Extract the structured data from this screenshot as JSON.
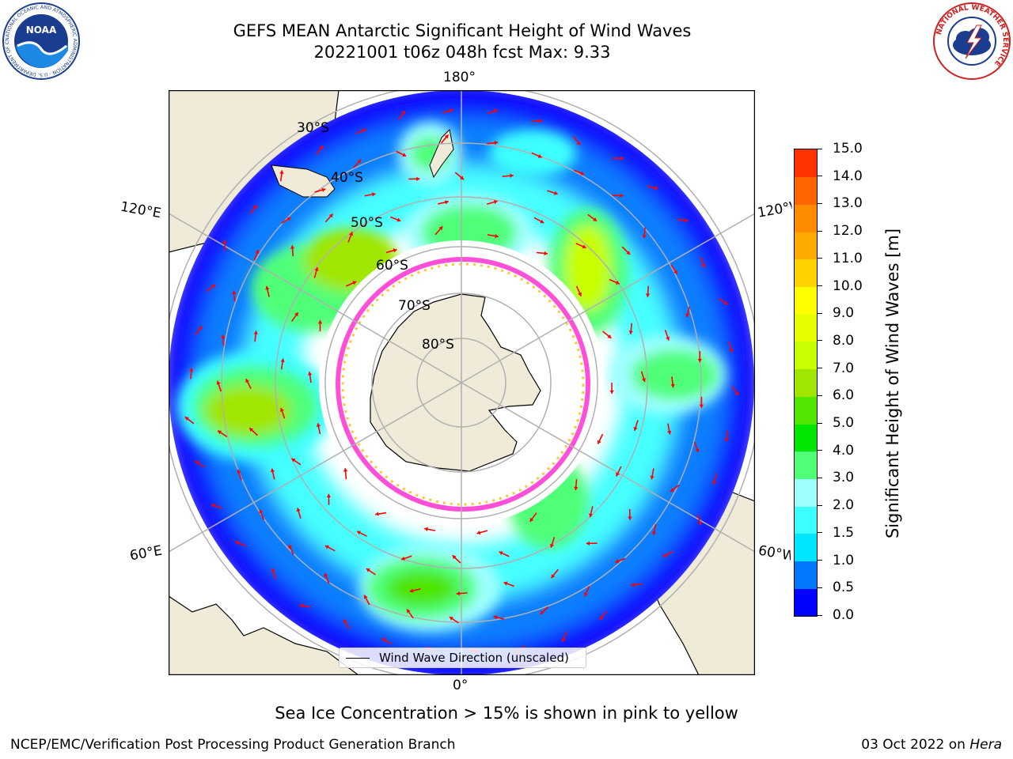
{
  "title_line1": "GEFS MEAN Antarctic Significant Height of Wind Waves",
  "title_line2": "20221001 t06z 048h fcst   Max: 9.33",
  "map": {
    "lon_labels": {
      "top": "180°",
      "bottom": "0°",
      "upper_left": "120°E",
      "upper_right": "120°W",
      "lower_left": "60°E",
      "lower_right": "60°W"
    },
    "lat_labels": [
      "30°S",
      "40°S",
      "50°S",
      "60°S",
      "70°S",
      "80°S"
    ],
    "legend_label": "Wind Wave Direction (unscaled)",
    "colors": {
      "land": "#efebd8",
      "ocean_empty": "#ffffff",
      "grid": "#b0b0b0",
      "arrow": "#ff0000",
      "ice_pink": "#ff4fd8",
      "ice_yellow": "#ffc830"
    }
  },
  "colorbar": {
    "title": "Significant Height of Wind Waves [m]",
    "ticks": [
      "0.0",
      "0.5",
      "1.0",
      "1.5",
      "2.0",
      "3.0",
      "4.0",
      "5.0",
      "6.0",
      "7.0",
      "8.0",
      "9.0",
      "10.0",
      "11.0",
      "12.0",
      "13.0",
      "14.0",
      "15.0"
    ],
    "colors": [
      "#0000ff",
      "#0078ff",
      "#00e6ff",
      "#3cffff",
      "#a0ffff",
      "#50ff78",
      "#00e600",
      "#50e600",
      "#a0e600",
      "#c8ff00",
      "#e6ff00",
      "#ffff00",
      "#ffd200",
      "#ffaa00",
      "#ff8c00",
      "#ff6400",
      "#ff3200"
    ]
  },
  "footnote": "Sea Ice Concentration > 15% is shown in pink to yellow",
  "credit_left": "NCEP/EMC/Verification Post Processing Product Generation Branch",
  "credit_right_date": "03 Oct 2022 on",
  "credit_right_host": "Hera",
  "logos": {
    "noaa_text": "NOAA",
    "noaa_ring": "NATIONAL OCEANIC AND ATMOSPHERIC ADMINISTRATION · U.S. DEPARTMENT OF COMMERCE",
    "nws_ring": "NATIONAL WEATHER SERVICE"
  }
}
